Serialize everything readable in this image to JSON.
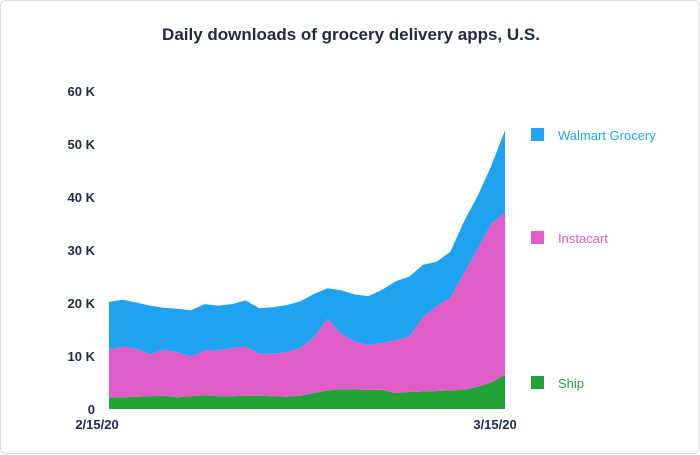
{
  "chart_data": {
    "type": "area",
    "stacked": true,
    "title": "Daily downloads of grocery delivery apps, U.S.",
    "xlabel": "",
    "ylabel": "",
    "ylim": [
      0,
      60000
    ],
    "y_ticks": [
      {
        "value": 0,
        "label": "0"
      },
      {
        "value": 10000,
        "label": "10 K"
      },
      {
        "value": 20000,
        "label": "20 K"
      },
      {
        "value": 30000,
        "label": "30 K"
      },
      {
        "value": 40000,
        "label": "40 K"
      },
      {
        "value": 50000,
        "label": "50 K"
      },
      {
        "value": 60000,
        "label": "60 K"
      }
    ],
    "x_tick_labels": [
      "2/15/20",
      "3/15/20"
    ],
    "x": [
      "2/15",
      "2/16",
      "2/17",
      "2/18",
      "2/19",
      "2/20",
      "2/21",
      "2/22",
      "2/23",
      "2/24",
      "2/25",
      "2/26",
      "2/27",
      "2/28",
      "2/29",
      "3/1",
      "3/2",
      "3/3",
      "3/4",
      "3/5",
      "3/6",
      "3/7",
      "3/8",
      "3/9",
      "3/10",
      "3/11",
      "3/12",
      "3/13",
      "3/14",
      "3/15"
    ],
    "series": [
      {
        "name": "Ship",
        "color": "#21a336",
        "values": [
          2200,
          2200,
          2300,
          2400,
          2500,
          2200,
          2400,
          2600,
          2400,
          2400,
          2500,
          2500,
          2400,
          2300,
          2500,
          3000,
          3500,
          3700,
          3700,
          3600,
          3600,
          3000,
          3200,
          3300,
          3400,
          3500,
          3600,
          4200,
          5000,
          6500
        ]
      },
      {
        "name": "Instacart",
        "color": "#e05cc7",
        "values": [
          9000,
          9600,
          9100,
          7900,
          8700,
          8500,
          7500,
          8400,
          8700,
          9100,
          9300,
          7900,
          8000,
          8400,
          9000,
          10500,
          13500,
          10500,
          9000,
          8500,
          8800,
          10000,
          10500,
          14000,
          16000,
          17500,
          22000,
          26000,
          30000,
          30500
        ]
      },
      {
        "name": "Walmart Grocery",
        "color": "#1fa2f0",
        "values": [
          9000,
          8800,
          8700,
          9200,
          7900,
          8200,
          8700,
          8800,
          8400,
          8300,
          8700,
          8600,
          8800,
          8900,
          8800,
          8200,
          5800,
          8200,
          8900,
          9200,
          10100,
          11100,
          11300,
          9900,
          8400,
          8700,
          9800,
          10000,
          10900,
          15600
        ]
      }
    ],
    "legend": {
      "placement": "right",
      "entries": [
        "Walmart Grocery",
        "Instacart",
        "Ship"
      ]
    },
    "grid": false
  }
}
